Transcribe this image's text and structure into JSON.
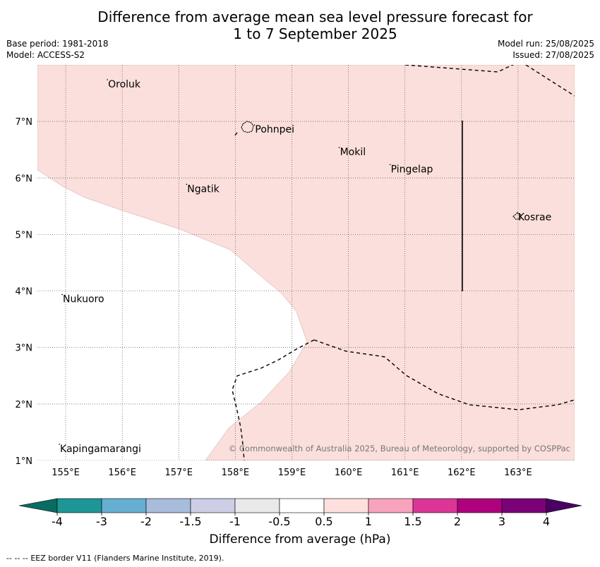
{
  "header": {
    "title_line1": "Difference from average mean sea level pressure forecast for",
    "title_line2": "1 to 7 September 2025",
    "base_period": "Base period: 1981-2018",
    "model": "Model: ACCESS-S2",
    "model_run": "Model run: 25/08/2025",
    "issued": "Issued: 27/08/2025"
  },
  "map": {
    "lon_labels": [
      "155°E",
      "156°E",
      "157°E",
      "158°E",
      "159°E",
      "160°E",
      "161°E",
      "162°E",
      "163°E"
    ],
    "lat_labels": [
      "7°N",
      "6°N",
      "5°N",
      "4°N",
      "3°N",
      "2°N",
      "1°N"
    ],
    "lon_values": [
      155,
      156,
      157,
      158,
      159,
      160,
      161,
      162,
      163
    ],
    "lat_values": [
      7,
      6,
      5,
      4,
      3,
      2,
      1
    ],
    "extent": {
      "lon_min": 154.5,
      "lon_max": 164.0,
      "lat_min": 1.0,
      "lat_max": 8.0
    },
    "fill_color": "#fbdfdc",
    "places": [
      {
        "name": "Oroluk",
        "lon": 155.75,
        "lat": 7.65
      },
      {
        "name": "Pohnpei",
        "lon": 158.35,
        "lat": 6.85
      },
      {
        "name": "Mokil",
        "lon": 159.85,
        "lat": 6.45
      },
      {
        "name": "Pingelap",
        "lon": 160.75,
        "lat": 6.15
      },
      {
        "name": "Ngatik",
        "lon": 157.15,
        "lat": 5.8
      },
      {
        "name": "Kosrae",
        "lon": 163.0,
        "lat": 5.3
      },
      {
        "name": "Nukuoro",
        "lon": 154.95,
        "lat": 3.85
      },
      {
        "name": "Kapingamarangi",
        "lon": 154.9,
        "lat": 1.2
      }
    ],
    "copyright": "© Commonwealth of Australia 2025, Bureau of Meteorology, supported by COSPPac"
  },
  "colorbar": {
    "title": "Difference from average (hPa)",
    "tick_labels": [
      "-4",
      "-3",
      "-2",
      "-1.5",
      "-1",
      "-0.5",
      "0.5",
      "1",
      "1.5",
      "2",
      "3",
      "4"
    ],
    "colors": [
      "#1f9696",
      "#66aed2",
      "#a8bcdc",
      "#cdcee6",
      "#e9e9e9",
      "#ffffff",
      "#fde0dd",
      "#f8a3bd",
      "#dc3598",
      "#ae017e",
      "#7a0177"
    ],
    "under_color": "#0a6b62",
    "over_color": "#4a0063"
  },
  "footer": {
    "legend_symbol": "--  --  --",
    "legend_text": "EEZ border V11 (Flanders Marine Institute, 2019)."
  }
}
